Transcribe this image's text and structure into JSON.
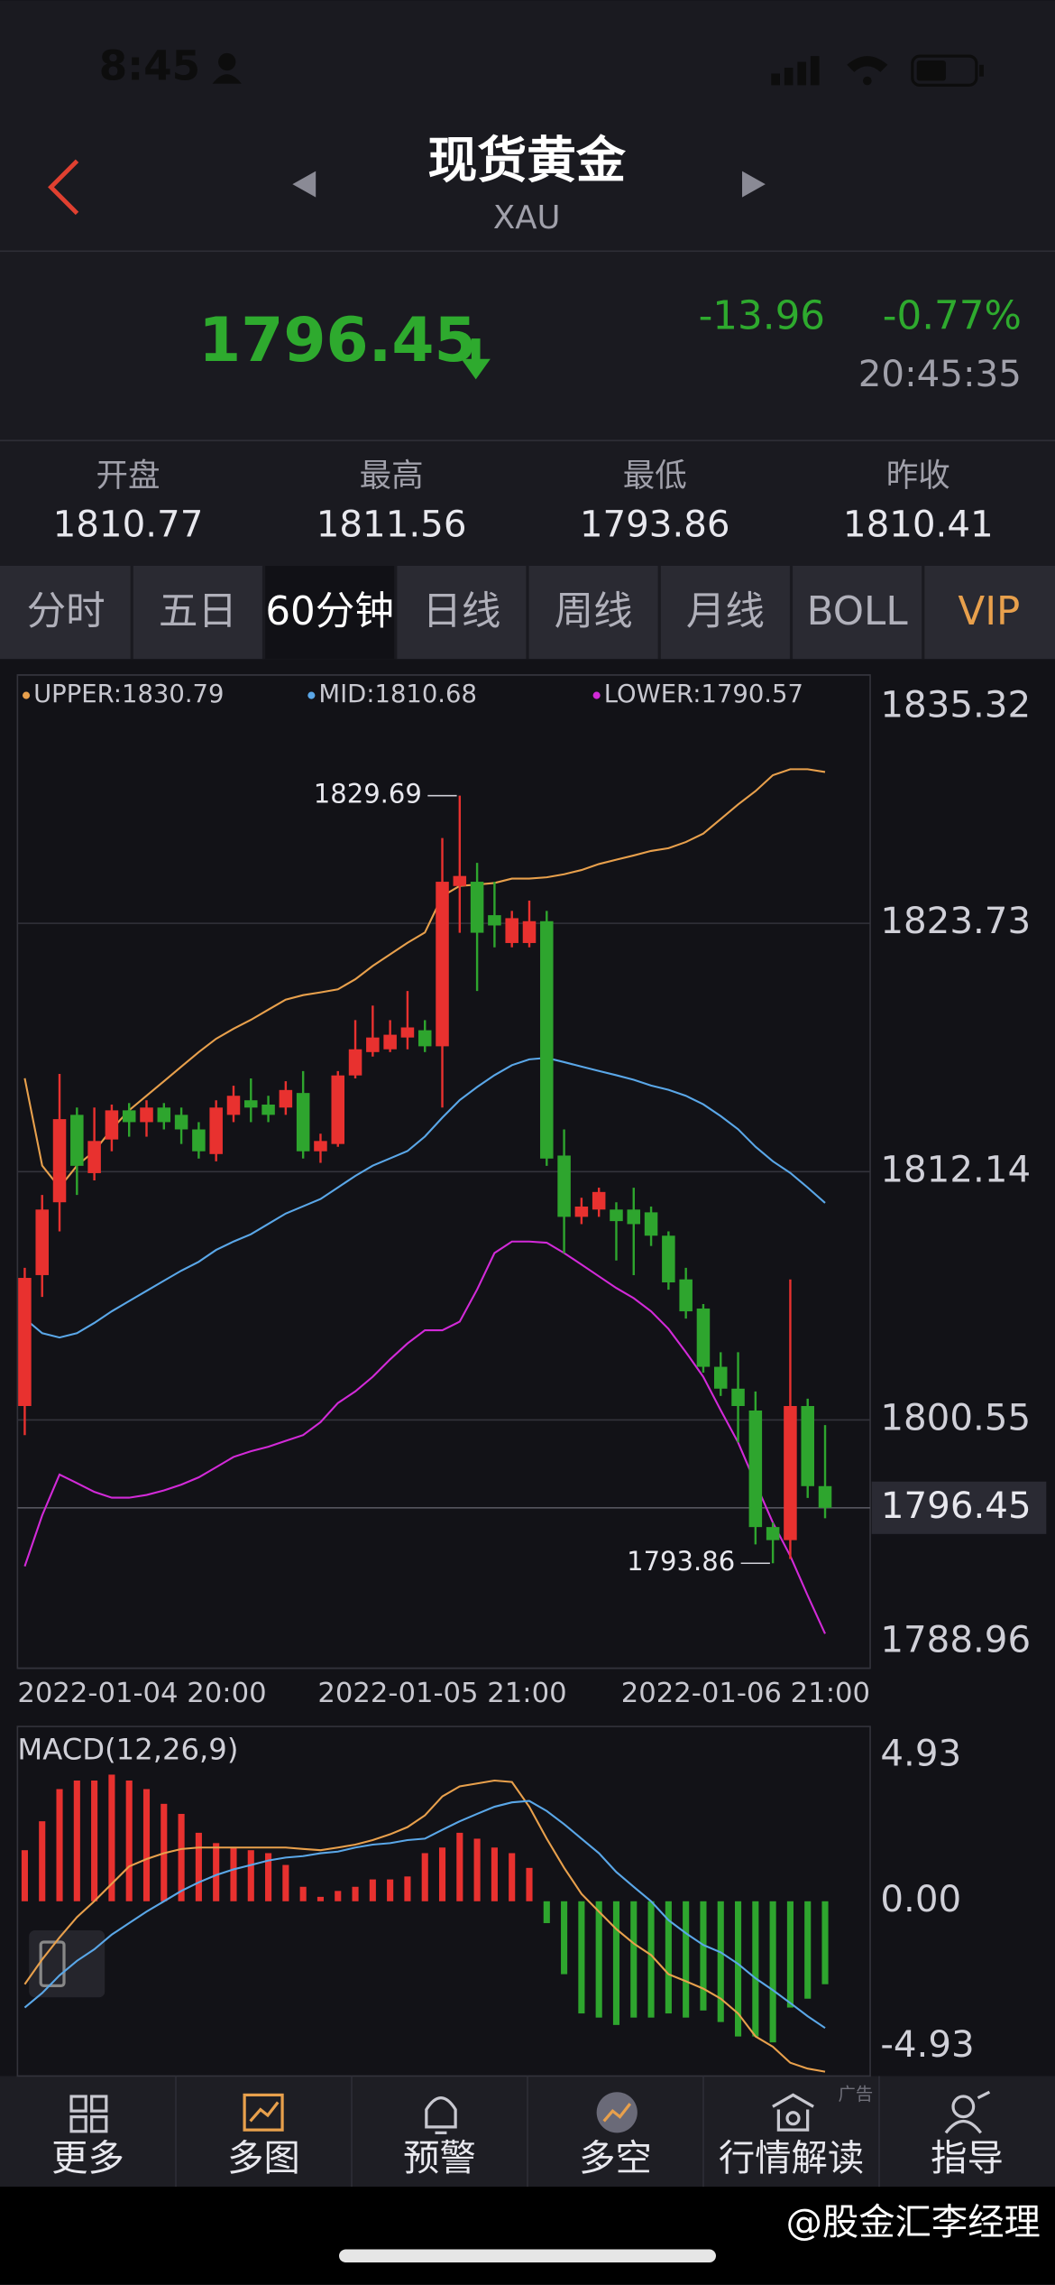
{
  "status_bar": {
    "time": "8:45"
  },
  "header": {
    "title": "现货黄金",
    "symbol": "XAU"
  },
  "quote": {
    "change": -13.96,
    "change_pct": "-0.77%",
    "time": "20:45:35"
  },
  "stats": [
    {
      "label": "开盘",
      "value": 1810.77
    },
    {
      "label": "最高",
      "value": 1811.56
    },
    {
      "label": "最低",
      "value": 1793.86
    },
    {
      "label": "昨收",
      "value": 1810.41
    }
  ],
  "tabs": {
    "items": [
      "分时",
      "五日",
      "60分钟",
      "日线",
      "周线",
      "月线",
      "BOLL",
      "VIP"
    ],
    "active": 2
  },
  "chart_data": [
    {
      "type": "candlestick",
      "categories": [
        "2022-01-04 20:00",
        null,
        null,
        null,
        null,
        null,
        null,
        null,
        null,
        null,
        null,
        null,
        null,
        null,
        null,
        null,
        null,
        null,
        null,
        null,
        null,
        null,
        null,
        null,
        "2022-01-05 21:00",
        null,
        null,
        null,
        null,
        null,
        null,
        null,
        null,
        null,
        null,
        null,
        null,
        null,
        null,
        null,
        null,
        null,
        null,
        null,
        null,
        null,
        "2022-01-06 21:00"
      ],
      "open": [
        1801.2,
        1807.31,
        1810.71,
        1814.79,
        1812.07,
        1813.64,
        1815.0,
        1814.45,
        1815.13,
        1814.79,
        1814.11,
        1812.96,
        1814.79,
        1815.47,
        1815.27,
        1815.13,
        1815.81,
        1813.09,
        1813.43,
        1816.63,
        1817.72,
        1817.85,
        1818.4,
        1818.74,
        1817.99,
        1825.47,
        1825.67,
        1824.11,
        1822.81,
        1822.81,
        1823.83,
        1812.89,
        1810.03,
        1810.37,
        1810.37,
        1810.37,
        1810.24,
        1809.15,
        1807.11,
        1805.75,
        1803.03,
        1802.01,
        1800.99,
        1795.55,
        1794.94,
        1801.2,
        1797.46
      ],
      "high": [
        1807.65,
        1811.05,
        1816.7,
        1815.13,
        1815.13,
        1815.27,
        1815.34,
        1815.47,
        1815.34,
        1815.13,
        1814.45,
        1815.47,
        1816.15,
        1816.49,
        1815.68,
        1816.36,
        1816.83,
        1813.91,
        1816.83,
        1819.21,
        1819.89,
        1819.21,
        1820.57,
        1819.21,
        1827.71,
        1829.69,
        1826.55,
        1825.67,
        1824.31,
        1824.79,
        1824.31,
        1814.11,
        1810.92,
        1811.39,
        1810.71,
        1811.39,
        1810.51,
        1809.35,
        1807.65,
        1805.96,
        1803.71,
        1803.71,
        1801.88,
        1795.76,
        1807.11,
        1801.54,
        1800.31
      ],
      "low": [
        1799.84,
        1806.29,
        1809.35,
        1811.05,
        1811.73,
        1813.09,
        1813.77,
        1813.77,
        1814.11,
        1813.43,
        1812.75,
        1812.62,
        1814.45,
        1814.45,
        1814.45,
        1814.79,
        1812.75,
        1812.55,
        1813.3,
        1816.49,
        1817.51,
        1817.72,
        1817.85,
        1817.72,
        1815.13,
        1823.29,
        1820.57,
        1822.61,
        1822.61,
        1822.61,
        1812.41,
        1808.33,
        1809.69,
        1810.03,
        1807.99,
        1807.31,
        1808.67,
        1806.63,
        1805.28,
        1802.76,
        1801.67,
        1799.5,
        1794.74,
        1793.86,
        1794.06,
        1796.91,
        1795.96
      ],
      "close": [
        1807.18,
        1810.37,
        1814.59,
        1812.41,
        1813.57,
        1815.0,
        1814.45,
        1815.13,
        1814.45,
        1814.11,
        1813.09,
        1815.13,
        1815.68,
        1815.13,
        1814.79,
        1815.95,
        1813.09,
        1813.57,
        1816.63,
        1817.85,
        1818.4,
        1818.53,
        1818.87,
        1817.99,
        1825.67,
        1825.94,
        1823.29,
        1823.63,
        1823.97,
        1823.83,
        1812.75,
        1810.03,
        1810.51,
        1811.19,
        1809.83,
        1809.69,
        1809.15,
        1806.97,
        1805.62,
        1803.03,
        1802.01,
        1801.2,
        1795.55,
        1794.94,
        1801.2,
        1797.46,
        1796.45
      ],
      "up_color": "#e8312f",
      "down_color": "#2ea52e",
      "series": [
        {
          "name": "UPPER:1830.79",
          "color": "#e8a04c",
          "values": [
            1816.5,
            1812.42,
            1811.4,
            1812.42,
            1813.1,
            1814.12,
            1815.0,
            1815.68,
            1816.36,
            1817.04,
            1817.72,
            1818.34,
            1818.81,
            1819.22,
            1819.7,
            1820.17,
            1820.38,
            1820.51,
            1820.65,
            1821.12,
            1821.74,
            1822.28,
            1822.82,
            1823.3,
            1825.0,
            1825.48,
            1825.54,
            1825.61,
            1825.82,
            1825.82,
            1825.88,
            1826.02,
            1826.22,
            1826.5,
            1826.7,
            1826.9,
            1827.11,
            1827.24,
            1827.52,
            1827.92,
            1828.6,
            1829.28,
            1829.9,
            1830.64,
            1830.92,
            1830.92,
            1830.79
          ]
        },
        {
          "name": "MID:1810.68",
          "color": "#5aa7e8",
          "values": [
            1805.28,
            1804.6,
            1804.4,
            1804.6,
            1805.08,
            1805.62,
            1806.1,
            1806.57,
            1807.05,
            1807.52,
            1807.93,
            1808.48,
            1808.88,
            1809.22,
            1809.7,
            1810.18,
            1810.52,
            1810.86,
            1811.4,
            1811.94,
            1812.42,
            1812.76,
            1813.1,
            1813.78,
            1814.66,
            1815.48,
            1816.09,
            1816.64,
            1817.11,
            1817.38,
            1817.45,
            1817.25,
            1817.04,
            1816.84,
            1816.64,
            1816.43,
            1816.16,
            1815.96,
            1815.68,
            1815.28,
            1814.73,
            1814.12,
            1813.3,
            1812.62,
            1812.08,
            1811.4,
            1810.68
          ]
        },
        {
          "name": "LOWER:1790.57",
          "color": "#d22ad8",
          "values": [
            1793.72,
            1796.1,
            1798.0,
            1797.6,
            1797.19,
            1796.92,
            1796.92,
            1797.05,
            1797.26,
            1797.53,
            1797.87,
            1798.34,
            1798.82,
            1799.09,
            1799.3,
            1799.57,
            1799.84,
            1800.45,
            1801.34,
            1801.88,
            1802.56,
            1803.38,
            1804.12,
            1804.74,
            1804.74,
            1805.14,
            1806.64,
            1808.34,
            1808.88,
            1808.88,
            1808.82,
            1808.34,
            1807.8,
            1807.25,
            1806.71,
            1806.23,
            1805.62,
            1804.8,
            1803.72,
            1802.56,
            1801.0,
            1799.5,
            1797.6,
            1795.76,
            1794.2,
            1792.36,
            1790.57
          ]
        }
      ],
      "ylim": [
        1788.96,
        1835.32
      ],
      "yticks": [
        1835.32,
        1823.73,
        1812.14,
        1800.55,
        1788.96
      ],
      "grid": true
    },
    {
      "type": "macd",
      "title": "MACD(12,26,9)",
      "values": [
        1.73,
        2.71,
        3.8,
        4.09,
        4.09,
        4.29,
        4.09,
        3.8,
        3.3,
        2.96,
        2.32,
        1.97,
        1.82,
        1.73,
        1.63,
        1.23,
        0.49,
        0.15,
        0.35,
        0.49,
        0.74,
        0.74,
        0.84,
        1.63,
        1.82,
        2.32,
        2.12,
        1.82,
        1.63,
        1.13,
        -0.74,
        -2.47,
        -3.8,
        -3.94,
        -4.19,
        -3.94,
        -3.94,
        -3.8,
        -3.94,
        -3.7,
        -4.09,
        -4.58,
        -4.58,
        -4.78,
        -3.6,
        -3.3,
        -2.81
      ],
      "up_color": "#e8312f",
      "down_color": "#2ea52e",
      "series": [
        {
          "color": "#e8a04c",
          "values": [
            -2.81,
            -1.97,
            -1.23,
            -0.54,
            0,
            0.59,
            1.18,
            1.43,
            1.63,
            1.77,
            1.82,
            1.82,
            1.82,
            1.82,
            1.82,
            1.82,
            1.77,
            1.73,
            1.82,
            1.92,
            2.07,
            2.27,
            2.51,
            2.91,
            3.55,
            3.89,
            3.99,
            4.09,
            4.04,
            3.2,
            2.12,
            1.13,
            0.25,
            -0.35,
            -0.94,
            -1.43,
            -1.82,
            -2.47,
            -2.71,
            -2.96,
            -3.3,
            -3.8,
            -4.58,
            -4.93,
            -5.47,
            -5.67,
            -5.77
          ]
        },
        {
          "color": "#5aa7e8",
          "values": [
            -3.6,
            -3.11,
            -2.51,
            -2.02,
            -1.63,
            -1.13,
            -0.74,
            -0.35,
            0,
            0.35,
            0.64,
            0.89,
            1.08,
            1.23,
            1.38,
            1.48,
            1.53,
            1.63,
            1.68,
            1.82,
            1.92,
            1.97,
            2.07,
            2.12,
            2.42,
            2.71,
            2.96,
            3.2,
            3.35,
            3.4,
            3.06,
            2.61,
            2.12,
            1.63,
            0.99,
            0.49,
            0,
            -0.64,
            -1.08,
            -1.48,
            -1.73,
            -2.12,
            -2.61,
            -3.01,
            -3.45,
            -3.89,
            -4.29
          ]
        }
      ],
      "ylim": [
        -5.92,
        5.92
      ],
      "yticks": [
        4.93,
        {
          "value": 0,
          "label": "0.00"
        },
        -4.93
      ],
      "grid": false
    }
  ],
  "toolbar": {
    "items": [
      "更多",
      "多图",
      "预警",
      "多空",
      "行情解读",
      "指导"
    ],
    "ad_label": "广告"
  },
  "watermark": "@股金汇李经理"
}
